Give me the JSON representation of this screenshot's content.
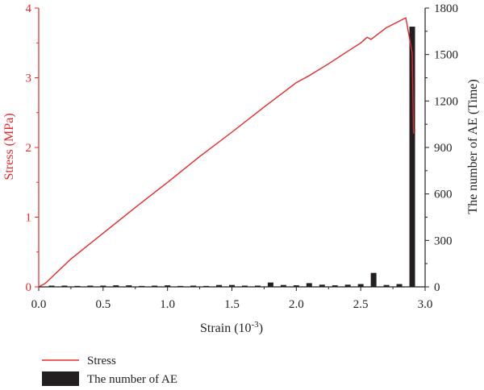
{
  "chart_data": {
    "type": "bar",
    "xlabel": "Strain (10",
    "xlabel_superscript": "-3",
    "xlabel_close": ")",
    "ylabel_left": "Stress (MPa)",
    "ylabel_right": "The number of AE (Time)",
    "xlim": [
      0.0,
      3.0
    ],
    "ylim_left": [
      0,
      4
    ],
    "ylim_right": [
      0,
      1800
    ],
    "x_ticks": [
      "0.0",
      "0.5",
      "1.0",
      "1.5",
      "2.0",
      "2.5",
      "3.0"
    ],
    "y_left_ticks": [
      "0",
      "1",
      "2",
      "3",
      "4"
    ],
    "y_right_ticks": [
      "0",
      "300",
      "600",
      "900",
      "1200",
      "1500",
      "1800"
    ],
    "grid": false,
    "legend_placement": "bottom-left",
    "colors": {
      "stress": "#e8282b",
      "ae": "#231f20",
      "left_axis": "#e8282b",
      "right_axis": "#231f20"
    },
    "series": [
      {
        "name": "Stress",
        "type": "line",
        "axis": "left",
        "x": [
          0.0,
          0.05,
          0.25,
          0.5,
          0.75,
          1.0,
          1.25,
          1.5,
          1.75,
          2.0,
          2.1,
          2.25,
          2.4,
          2.5,
          2.55,
          2.58,
          2.7,
          2.85,
          2.9,
          2.91
        ],
        "y": [
          0.0,
          0.05,
          0.4,
          0.77,
          1.14,
          1.5,
          1.87,
          2.22,
          2.58,
          2.93,
          3.03,
          3.2,
          3.38,
          3.5,
          3.58,
          3.55,
          3.72,
          3.86,
          3.35,
          2.2
        ]
      },
      {
        "name": "The number of AE",
        "type": "bar",
        "axis": "right",
        "x": [
          0.1,
          0.2,
          0.3,
          0.4,
          0.5,
          0.6,
          0.7,
          0.8,
          0.9,
          1.0,
          1.1,
          1.2,
          1.3,
          1.4,
          1.5,
          1.6,
          1.7,
          1.8,
          1.9,
          2.0,
          2.1,
          2.2,
          2.3,
          2.4,
          2.5,
          2.6,
          2.7,
          2.8,
          2.9
        ],
        "y": [
          8,
          8,
          6,
          8,
          8,
          10,
          10,
          6,
          8,
          10,
          6,
          8,
          6,
          12,
          12,
          8,
          8,
          28,
          12,
          10,
          24,
          14,
          10,
          14,
          18,
          90,
          12,
          18,
          1680
        ]
      }
    ]
  }
}
